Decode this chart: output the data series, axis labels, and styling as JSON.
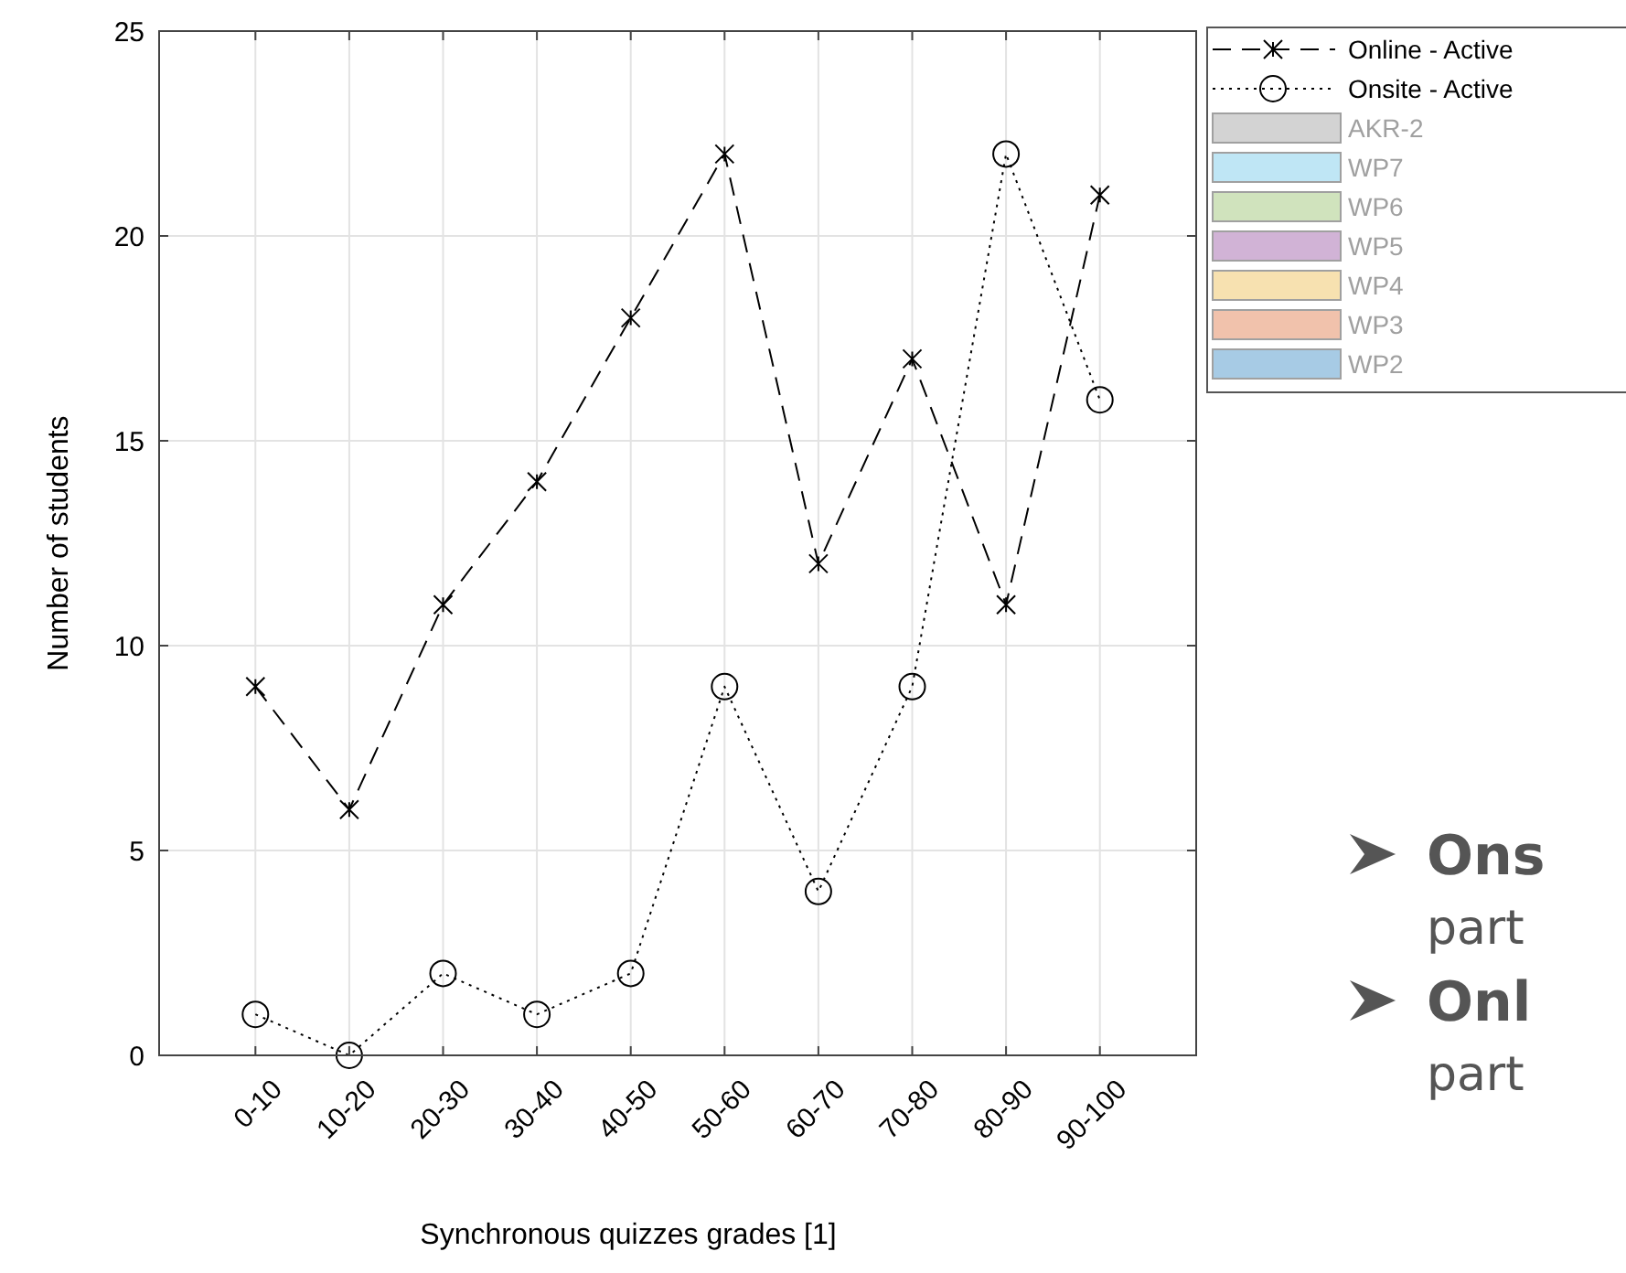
{
  "chart_data": {
    "type": "line",
    "xlabel": "Synchronous quizzes grades [1]",
    "ylabel": "Number of students",
    "categories": [
      "0-10",
      "10-20",
      "20-30",
      "30-40",
      "40-50",
      "50-60",
      "60-70",
      "70-80",
      "80-90",
      "90-100"
    ],
    "ylim": [
      0,
      25
    ],
    "yticks": [
      0,
      5,
      10,
      15,
      20,
      25
    ],
    "grid": true,
    "legend": "top right",
    "series": [
      {
        "name": "Online - Active",
        "color": "#000000",
        "marker": "cross",
        "line_style": "dashed",
        "values": [
          9,
          6,
          11,
          14,
          18,
          22,
          12,
          17,
          11,
          21
        ]
      },
      {
        "name": "Onsite - Active",
        "color": "#000000",
        "marker": "circle",
        "line_style": "dotted",
        "values": [
          1,
          0,
          2,
          1,
          2,
          9,
          4,
          9,
          22,
          16
        ]
      },
      {
        "name": "AKR-2",
        "type": "area",
        "color": "#d3d3d3",
        "values": [
          null,
          null,
          null,
          null,
          null,
          null,
          null,
          null,
          null,
          null
        ]
      },
      {
        "name": "WP7",
        "type": "area",
        "color": "#bfe6f5",
        "values": [
          null,
          null,
          null,
          null,
          null,
          null,
          null,
          null,
          null,
          null
        ]
      },
      {
        "name": "WP6",
        "type": "area",
        "color": "#d0e3bd",
        "values": [
          null,
          null,
          null,
          null,
          null,
          null,
          null,
          null,
          null,
          null
        ]
      },
      {
        "name": "WP5",
        "type": "area",
        "color": "#d1b3d6",
        "values": [
          null,
          null,
          null,
          null,
          null,
          null,
          null,
          null,
          null,
          null
        ]
      },
      {
        "name": "WP4",
        "type": "area",
        "color": "#f7e1b0",
        "values": [
          null,
          null,
          null,
          null,
          null,
          null,
          null,
          null,
          null,
          null
        ]
      },
      {
        "name": "WP3",
        "type": "area",
        "color": "#f1c2ac",
        "values": [
          null,
          null,
          null,
          null,
          null,
          null,
          null,
          null,
          null,
          null
        ]
      },
      {
        "name": "WP2",
        "type": "area",
        "color": "#a7cbe5",
        "values": [
          null,
          null,
          null,
          null,
          null,
          null,
          null,
          null,
          null,
          null
        ]
      }
    ],
    "annotations": [
      "Ons",
      "part",
      "Onl",
      "part"
    ]
  }
}
